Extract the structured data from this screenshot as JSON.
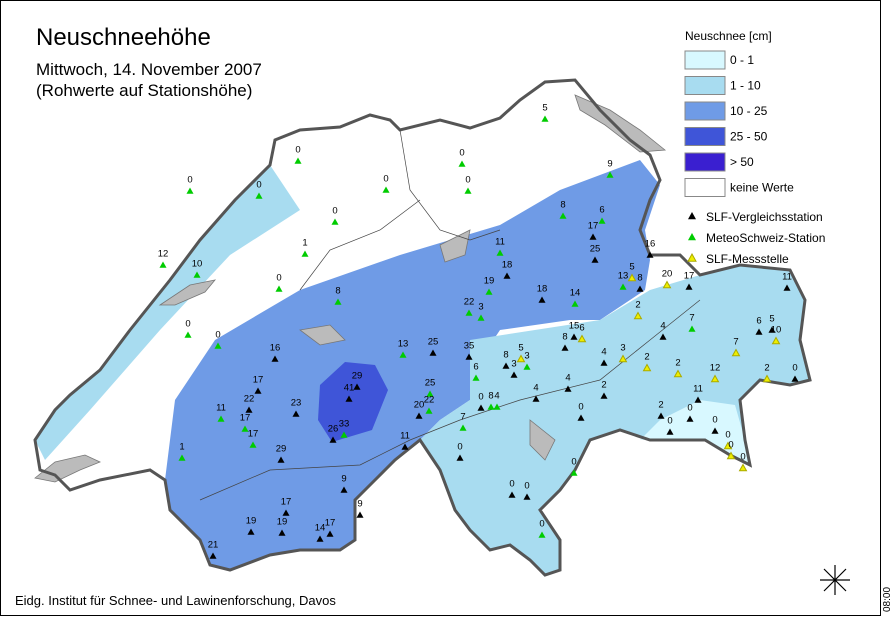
{
  "header": {
    "title": "Neuschneehöhe",
    "subtitle": "Mittwoch, 14. November 2007",
    "note": "(Rohwerte auf Stationshöhe)"
  },
  "legend": {
    "title": "Neuschnee [cm]",
    "classes": [
      {
        "label": "0 - 1",
        "color": "#d8f8ff"
      },
      {
        "label": "1 - 10",
        "color": "#a8dcf0"
      },
      {
        "label": "10 - 25",
        "color": "#6f9be6"
      },
      {
        "label": "25 - 50",
        "color": "#3f55d8"
      },
      {
        "label": "> 50",
        "color": "#3a1fd0"
      },
      {
        "label": "keine Werte",
        "color": "#ffffff"
      }
    ],
    "stations": [
      {
        "label": "SLF-Vergleichsstation",
        "color": "#000000"
      },
      {
        "label": "MeteoSchweiz-Station",
        "color": "#00cc00"
      },
      {
        "label": "SLF-Messstelle",
        "color": "#eeee00"
      }
    ]
  },
  "stations": {
    "values": [
      0,
      0,
      0,
      0,
      0,
      0,
      0,
      5,
      9,
      12,
      10,
      1,
      0,
      0,
      0,
      8,
      8,
      6,
      17,
      11,
      25,
      16,
      18,
      19,
      18,
      14,
      13,
      5,
      8,
      20,
      17,
      11,
      22,
      3,
      2,
      13,
      25,
      35,
      16,
      15,
      6,
      8,
      4,
      7,
      6,
      5,
      10,
      8,
      5,
      3,
      3,
      4,
      3,
      2,
      2,
      7,
      29,
      41,
      17,
      6,
      25,
      4,
      4,
      12,
      2,
      0,
      22,
      23,
      0,
      8,
      4,
      2,
      11,
      20,
      22,
      11,
      17,
      0,
      2,
      0,
      7,
      26,
      33,
      17,
      11,
      0,
      0,
      0,
      1,
      29,
      0,
      0,
      0,
      0,
      9,
      0,
      0,
      17,
      9,
      19,
      19,
      14,
      17,
      0,
      21
    ],
    "colors": [
      "#00cc00",
      "#00cc00",
      "#00cc00",
      "#00cc00",
      "#00cc00",
      "#00cc00",
      "#00cc00",
      "#00cc00",
      "#00cc00",
      "#00cc00",
      "#00cc00",
      "#00cc00",
      "#00cc00",
      "#00cc00",
      "#00cc00",
      "#00cc00",
      "#00cc00",
      "#00cc00",
      "#000000",
      "#00cc00",
      "#000000",
      "#000000",
      "#000000",
      "#00cc00",
      "#000000",
      "#00cc00",
      "#00cc00",
      "#eeee00",
      "#000000",
      "#eeee00",
      "#000000",
      "#000000",
      "#00cc00",
      "#00cc00",
      "#eeee00",
      "#00cc00",
      "#000000",
      "#000000",
      "#000000",
      "#000000",
      "#eeee00",
      "#000000",
      "#000000",
      "#00cc00",
      "#000000",
      "#000000",
      "#eeee00",
      "#000000",
      "#eeee00",
      "#00cc00",
      "#000000",
      "#000000",
      "#eeee00",
      "#eeee00",
      "#eeee00",
      "#eeee00",
      "#000000",
      "#000000",
      "#000000",
      "#00cc00",
      "#00cc00",
      "#000000",
      "#000000",
      "#eeee00",
      "#eeee00",
      "#000000",
      "#000000",
      "#000000",
      "#000000",
      "#00cc00",
      "#00cc00",
      "#000000",
      "#000000",
      "#000000",
      "#00cc00",
      "#00cc00",
      "#00cc00",
      "#000000",
      "#000000",
      "#000000",
      "#00cc00",
      "#000000",
      "#00cc00",
      "#00cc00",
      "#000000",
      "#000000",
      "#000000",
      "#eeee00",
      "#00cc00",
      "#000000",
      "#000000",
      "#eeee00",
      "#eeee00",
      "#00cc00",
      "#000000",
      "#000000",
      "#000000",
      "#000000",
      "#000000",
      "#000000",
      "#000000",
      "#000000",
      "#000000",
      "#00cc00",
      "#000000"
    ]
  },
  "footer": {
    "credit": "Eidg. Institut für Schnee- und Lawinenforschung, Davos",
    "time": "08:00"
  }
}
